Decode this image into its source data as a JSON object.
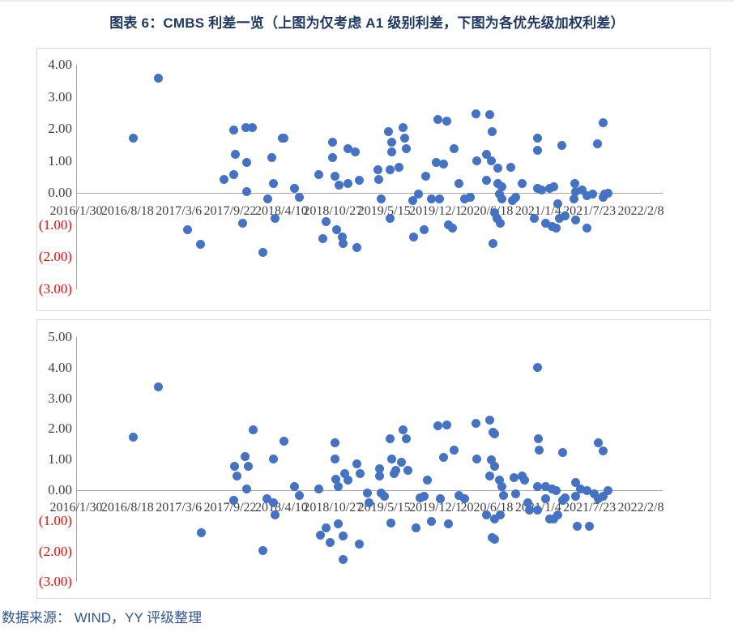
{
  "figure": {
    "title": "图表 6：CMBS 利差一览（上图为仅考虑 A1 级别利差，下图为各优先级加权利差）",
    "source": "数据来源： WIND，YY 评级整理"
  },
  "colors": {
    "dot": "#4472C4",
    "title_text": "#1F3864",
    "source_text": "#2F5597",
    "axis_line": "#A6A6A6",
    "tick_label": "#404040",
    "negative_tick_label": "#FF0000",
    "chart_border": "#D9D9D9"
  },
  "x_axis": {
    "tick_labels": [
      "2016/1/30",
      "2016/8/18",
      "2017/3/6",
      "2017/9/22",
      "2018/4/10",
      "2018/10/27",
      "2019/5/15",
      "2019/12/1",
      "2020/6/18",
      "2021/1/4",
      "2021/7/23",
      "2022/2/8"
    ],
    "x_unit": "decimal_year",
    "range_decimal_years": [
      2016.082,
      2022.106
    ]
  },
  "chart_data": [
    {
      "type": "scatter",
      "name": "CMBS 利差（仅考虑 A1 级别利差）",
      "ylim": [
        -3,
        4
      ],
      "grid": false,
      "legend": "none",
      "y_tick_labels": [
        "4.00",
        "3.00",
        "2.00",
        "1.00",
        "0.00",
        "(1.00)",
        "(2.00)",
        "(3.00)"
      ],
      "points": [
        [
          2016.69,
          1.72
        ],
        [
          2016.96,
          3.59
        ],
        [
          2017.27,
          -1.16
        ],
        [
          2017.41,
          -1.62
        ],
        [
          2017.66,
          0.41
        ],
        [
          2017.76,
          1.95
        ],
        [
          2017.76,
          0.56
        ],
        [
          2017.78,
          1.19
        ],
        [
          2017.86,
          -0.94
        ],
        [
          2017.89,
          2.05
        ],
        [
          2017.9,
          0.94
        ],
        [
          2017.9,
          0.05
        ],
        [
          2017.96,
          2.05
        ],
        [
          2018.07,
          -1.85
        ],
        [
          2018.13,
          -0.18
        ],
        [
          2018.17,
          1.11
        ],
        [
          2018.19,
          0.28
        ],
        [
          2018.2,
          -0.81
        ],
        [
          2018.28,
          1.7
        ],
        [
          2018.3,
          1.72
        ],
        [
          2018.41,
          0.13
        ],
        [
          2018.46,
          -0.13
        ],
        [
          2018.67,
          0.58
        ],
        [
          2018.71,
          -1.44
        ],
        [
          2018.75,
          -0.89
        ],
        [
          2018.82,
          1.57
        ],
        [
          2018.82,
          1.09
        ],
        [
          2018.84,
          0.53
        ],
        [
          2018.86,
          -1.14
        ],
        [
          2018.89,
          0.25
        ],
        [
          2018.92,
          -1.39
        ],
        [
          2018.93,
          -1.59
        ],
        [
          2018.98,
          1.39
        ],
        [
          2018.98,
          0.3
        ],
        [
          2019.06,
          1.27
        ],
        [
          2019.08,
          -1.7
        ],
        [
          2019.1,
          0.38
        ],
        [
          2019.3,
          0.71
        ],
        [
          2019.31,
          0.43
        ],
        [
          2019.34,
          -0.18
        ],
        [
          2019.41,
          1.9
        ],
        [
          2019.43,
          0.71
        ],
        [
          2019.43,
          -0.81
        ],
        [
          2019.45,
          1.57
        ],
        [
          2019.45,
          1.27
        ],
        [
          2019.53,
          0.81
        ],
        [
          2019.57,
          2.03
        ],
        [
          2019.59,
          1.72
        ],
        [
          2019.6,
          1.39
        ],
        [
          2019.67,
          -0.25
        ],
        [
          2019.68,
          -1.39
        ],
        [
          2019.73,
          -0.05
        ],
        [
          2019.79,
          -1.14
        ],
        [
          2019.81,
          0.51
        ],
        [
          2019.87,
          -0.18
        ],
        [
          2019.92,
          0.96
        ],
        [
          2019.94,
          2.28
        ],
        [
          2019.96,
          -0.2
        ],
        [
          2020.0,
          0.89
        ],
        [
          2020.04,
          2.23
        ],
        [
          2020.05,
          -1.01
        ],
        [
          2020.1,
          -1.09
        ],
        [
          2020.11,
          1.39
        ],
        [
          2020.17,
          0.3
        ],
        [
          2020.23,
          -0.18
        ],
        [
          2020.29,
          -0.13
        ],
        [
          2020.35,
          2.48
        ],
        [
          2020.36,
          1.01
        ],
        [
          2020.46,
          1.19
        ],
        [
          2020.46,
          0.38
        ],
        [
          2020.49,
          2.45
        ],
        [
          2020.51,
          1.01
        ],
        [
          2020.52,
          1.9
        ],
        [
          2020.53,
          -1.59
        ],
        [
          2020.55,
          -0.63
        ],
        [
          2020.57,
          -0.81
        ],
        [
          2020.58,
          0.76
        ],
        [
          2020.58,
          0.3
        ],
        [
          2020.6,
          -0.05
        ],
        [
          2020.61,
          -0.96
        ],
        [
          2020.62,
          0.2
        ],
        [
          2020.62,
          -0.18
        ],
        [
          2020.72,
          0.81
        ],
        [
          2020.74,
          -0.25
        ],
        [
          2020.77,
          -0.13
        ],
        [
          2020.84,
          0.3
        ],
        [
          2020.97,
          -0.81
        ],
        [
          2021.0,
          1.7
        ],
        [
          2021.0,
          1.32
        ],
        [
          2021.0,
          0.13
        ],
        [
          2021.05,
          0.08
        ],
        [
          2021.09,
          -0.94
        ],
        [
          2021.13,
          0.15
        ],
        [
          2021.16,
          -1.06
        ],
        [
          2021.18,
          0.2
        ],
        [
          2021.2,
          -1.09
        ],
        [
          2021.22,
          -0.33
        ],
        [
          2021.24,
          -0.81
        ],
        [
          2021.26,
          1.49
        ],
        [
          2021.3,
          -0.71
        ],
        [
          2021.39,
          -0.2
        ],
        [
          2021.4,
          0.28
        ],
        [
          2021.41,
          0.05
        ],
        [
          2021.41,
          -0.84
        ],
        [
          2021.48,
          0.08
        ],
        [
          2021.53,
          -0.08
        ],
        [
          2021.53,
          -1.09
        ],
        [
          2021.59,
          -0.05
        ],
        [
          2021.64,
          1.52
        ],
        [
          2021.7,
          2.2
        ],
        [
          2021.7,
          -0.13
        ],
        [
          2021.72,
          -0.03
        ],
        [
          2021.76,
          0.0
        ]
      ]
    },
    {
      "type": "scatter",
      "name": "CMBS 利差（各优先级加权利差）",
      "ylim": [
        -3,
        5
      ],
      "grid": false,
      "legend": "none",
      "y_tick_labels": [
        "5.00",
        "4.00",
        "3.00",
        "2.00",
        "1.00",
        "0.00",
        "(1.00)",
        "(2.00)",
        "(3.00)"
      ],
      "points": [
        [
          2016.69,
          1.72
        ],
        [
          2016.96,
          3.36
        ],
        [
          2017.42,
          -1.4
        ],
        [
          2017.76,
          -0.34
        ],
        [
          2017.77,
          0.77
        ],
        [
          2017.8,
          0.45
        ],
        [
          2017.88,
          1.11
        ],
        [
          2017.9,
          0.05
        ],
        [
          2017.92,
          0.79
        ],
        [
          2017.97,
          1.96
        ],
        [
          2018.07,
          -1.98
        ],
        [
          2018.12,
          -0.29
        ],
        [
          2018.19,
          1.03
        ],
        [
          2018.19,
          -0.42
        ],
        [
          2018.2,
          -0.82
        ],
        [
          2018.3,
          1.59
        ],
        [
          2018.41,
          0.13
        ],
        [
          2018.46,
          -0.16
        ],
        [
          2018.67,
          0.05
        ],
        [
          2018.69,
          -1.46
        ],
        [
          2018.75,
          -1.22
        ],
        [
          2018.79,
          -1.71
        ],
        [
          2018.84,
          1.56
        ],
        [
          2018.84,
          1.03
        ],
        [
          2018.85,
          0.37
        ],
        [
          2018.88,
          0.13
        ],
        [
          2018.88,
          -1.09
        ],
        [
          2018.93,
          -1.49
        ],
        [
          2018.93,
          -2.25
        ],
        [
          2018.95,
          0.53
        ],
        [
          2018.98,
          0.32
        ],
        [
          2019.08,
          0.85
        ],
        [
          2019.1,
          -1.75
        ],
        [
          2019.11,
          0.53
        ],
        [
          2019.19,
          -0.08
        ],
        [
          2019.21,
          -0.4
        ],
        [
          2019.32,
          0.71
        ],
        [
          2019.32,
          0.45
        ],
        [
          2019.34,
          -0.08
        ],
        [
          2019.37,
          -0.21
        ],
        [
          2019.43,
          1.69
        ],
        [
          2019.44,
          -1.06
        ],
        [
          2019.45,
          1.03
        ],
        [
          2019.47,
          0.53
        ],
        [
          2019.49,
          0.66
        ],
        [
          2019.55,
          0.9
        ],
        [
          2019.57,
          1.98
        ],
        [
          2019.6,
          1.69
        ],
        [
          2019.62,
          0.66
        ],
        [
          2019.71,
          -1.22
        ],
        [
          2019.75,
          -0.26
        ],
        [
          2019.79,
          -0.21
        ],
        [
          2019.83,
          0.32
        ],
        [
          2019.87,
          -1.01
        ],
        [
          2019.94,
          2.09
        ],
        [
          2019.97,
          -0.29
        ],
        [
          2020.0,
          1.06
        ],
        [
          2020.04,
          2.12
        ],
        [
          2020.05,
          -1.09
        ],
        [
          2020.11,
          1.32
        ],
        [
          2020.17,
          -0.16
        ],
        [
          2020.23,
          -0.29
        ],
        [
          2020.35,
          2.17
        ],
        [
          2020.36,
          1.03
        ],
        [
          2020.46,
          -0.82
        ],
        [
          2020.49,
          2.3
        ],
        [
          2020.49,
          0.45
        ],
        [
          2020.51,
          0.98
        ],
        [
          2020.52,
          -1.54
        ],
        [
          2020.53,
          1.9
        ],
        [
          2020.55,
          1.83
        ],
        [
          2020.55,
          0.79
        ],
        [
          2020.55,
          -0.95
        ],
        [
          2020.55,
          -1.61
        ],
        [
          2020.6,
          0.32
        ],
        [
          2020.61,
          -0.82
        ],
        [
          2020.62,
          0.13
        ],
        [
          2020.64,
          -0.16
        ],
        [
          2020.75,
          0.4
        ],
        [
          2020.77,
          -0.13
        ],
        [
          2020.84,
          0.45
        ],
        [
          2020.87,
          0.32
        ],
        [
          2020.9,
          -0.4
        ],
        [
          2020.92,
          -0.66
        ],
        [
          2021.0,
          4.02
        ],
        [
          2021.0,
          0.11
        ],
        [
          2021.0,
          -0.66
        ],
        [
          2021.01,
          1.69
        ],
        [
          2021.02,
          1.3
        ],
        [
          2021.09,
          0.11
        ],
        [
          2021.09,
          -0.29
        ],
        [
          2021.13,
          -0.93
        ],
        [
          2021.16,
          0.05
        ],
        [
          2021.18,
          -0.95
        ],
        [
          2021.2,
          0.0
        ],
        [
          2021.22,
          -0.82
        ],
        [
          2021.27,
          1.24
        ],
        [
          2021.27,
          -0.34
        ],
        [
          2021.3,
          -0.26
        ],
        [
          2021.41,
          0.24
        ],
        [
          2021.41,
          -0.21
        ],
        [
          2021.43,
          -1.19
        ],
        [
          2021.46,
          0.05
        ],
        [
          2021.53,
          0.0
        ],
        [
          2021.56,
          -1.19
        ],
        [
          2021.61,
          -0.13
        ],
        [
          2021.65,
          1.56
        ],
        [
          2021.65,
          -0.29
        ],
        [
          2021.7,
          1.27
        ],
        [
          2021.7,
          -0.21
        ],
        [
          2021.76,
          0.0
        ]
      ]
    }
  ]
}
